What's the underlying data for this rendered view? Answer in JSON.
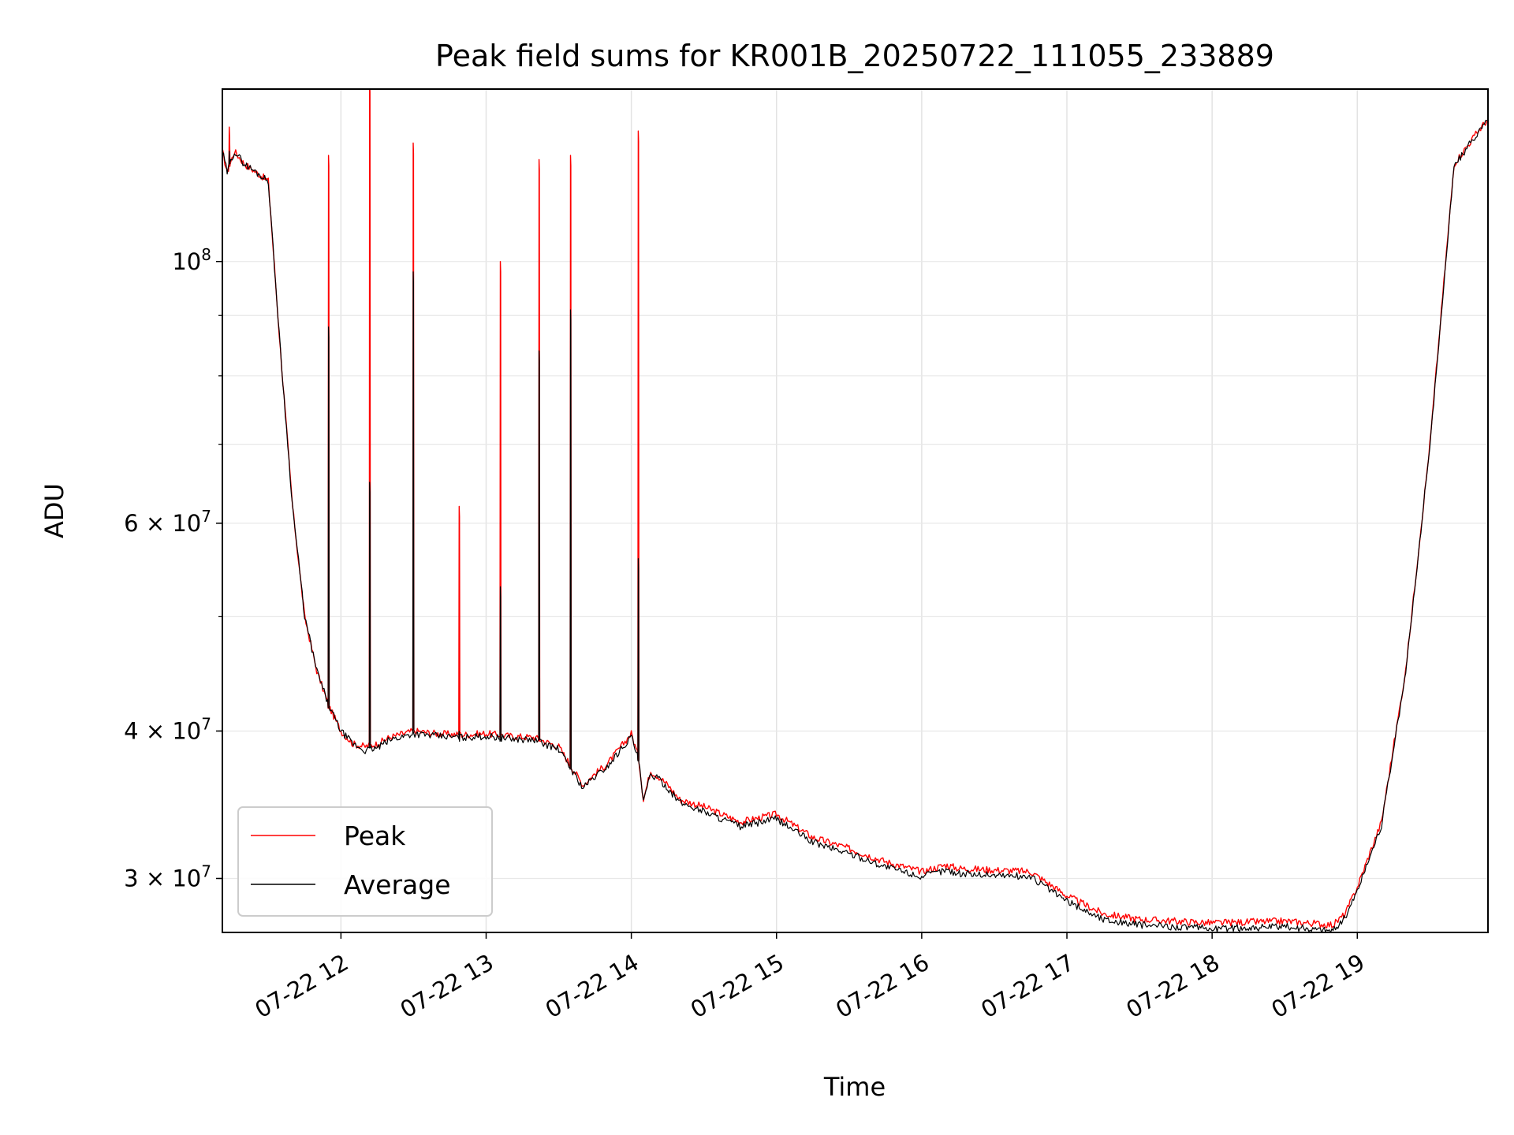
{
  "chart_data": {
    "type": "line",
    "title": "Peak field sums for KR001B_20250722_111055_233889",
    "xlabel": "Time",
    "ylabel": "ADU",
    "yscale": "log",
    "ylim": [
      27000000,
      140000000
    ],
    "xlim": [
      "07-22 11:11",
      "07-22 19:54"
    ],
    "grid": true,
    "legend_position": "lower-left",
    "x_ticks": [
      "07-22 12",
      "07-22 13",
      "07-22 14",
      "07-22 15",
      "07-22 16",
      "07-22 17",
      "07-22 18",
      "07-22 19"
    ],
    "y_ticks": [
      {
        "value": 100000000,
        "base": "10",
        "exp": "8",
        "coef": ""
      },
      {
        "value": 60000000,
        "base": "10",
        "exp": "7",
        "coef": "6 × "
      },
      {
        "value": 40000000,
        "base": "10",
        "exp": "7",
        "coef": "4 × "
      },
      {
        "value": 30000000,
        "base": "10",
        "exp": "7",
        "coef": "3 × "
      }
    ],
    "x": [
      "07-22 11:11",
      "07-22 11:13",
      "07-22 11:16",
      "07-22 11:20",
      "07-22 11:25",
      "07-22 11:30",
      "07-22 11:35",
      "07-22 11:40",
      "07-22 11:45",
      "07-22 11:50",
      "07-22 11:55",
      "07-22 12:00",
      "07-22 12:05",
      "07-22 12:10",
      "07-22 12:15",
      "07-22 12:20",
      "07-22 12:30",
      "07-22 12:40",
      "07-22 12:50",
      "07-22 13:00",
      "07-22 13:10",
      "07-22 13:20",
      "07-22 13:30",
      "07-22 13:40",
      "07-22 13:45",
      "07-22 13:50",
      "07-22 14:00",
      "07-22 14:03",
      "07-22 14:05",
      "07-22 14:08",
      "07-22 14:12",
      "07-22 14:15",
      "07-22 14:20",
      "07-22 14:30",
      "07-22 14:45",
      "07-22 15:00",
      "07-22 15:15",
      "07-22 15:30",
      "07-22 15:45",
      "07-22 16:00",
      "07-22 16:10",
      "07-22 16:15",
      "07-22 16:30",
      "07-22 16:45",
      "07-22 17:00",
      "07-22 17:15",
      "07-22 17:30",
      "07-22 17:45",
      "07-22 18:00",
      "07-22 18:30",
      "07-22 18:50",
      "07-22 18:55",
      "07-22 19:00",
      "07-22 19:10",
      "07-22 19:20",
      "07-22 19:30",
      "07-22 19:40",
      "07-22 19:50",
      "07-22 19:54"
    ],
    "series": [
      {
        "name": "Peak",
        "color": "#ff0000",
        "values": [
          124000000,
          119000000,
          124000000,
          121000000,
          119000000,
          117000000,
          84000000,
          62000000,
          50000000,
          45000000,
          42000000,
          40000000,
          39000000,
          38800000,
          39000000,
          39500000,
          40000000,
          39800000,
          39700000,
          39800000,
          39600000,
          39500000,
          38800000,
          36000000,
          36800000,
          37500000,
          39800000,
          38000000,
          35000000,
          37000000,
          36500000,
          36000000,
          35000000,
          34500000,
          33500000,
          34000000,
          32500000,
          31800000,
          31000000,
          30400000,
          30800000,
          30600000,
          30500000,
          30400000,
          29000000,
          28000000,
          27700000,
          27600000,
          27500000,
          27600000,
          27400000,
          28000000,
          29500000,
          33500000,
          45000000,
          70000000,
          121000000,
          129000000,
          132000000
        ]
      },
      {
        "name": "Average",
        "color": "#000000",
        "values": [
          124000000,
          119000000,
          124000000,
          121000000,
          119000000,
          117000000,
          84000000,
          62000000,
          50000000,
          45000000,
          42000000,
          40000000,
          39000000,
          38500000,
          38700000,
          39300000,
          39800000,
          39600000,
          39500000,
          39600000,
          39400000,
          39300000,
          38600000,
          35800000,
          36600000,
          37300000,
          39600000,
          37800000,
          34800000,
          36800000,
          36300000,
          35800000,
          34800000,
          34200000,
          33200000,
          33700000,
          32200000,
          31500000,
          30700000,
          30100000,
          30500000,
          30300000,
          30200000,
          30100000,
          28700000,
          27700000,
          27400000,
          27300000,
          27200000,
          27300000,
          27100000,
          27800000,
          29300000,
          33300000,
          44800000,
          69800000,
          120500000,
          128700000,
          131800000
        ]
      }
    ],
    "spikes": [
      {
        "x": "07-22 11:14",
        "peak": 130000000,
        "average": 124000000
      },
      {
        "x": "07-22 11:55",
        "peak": 123000000,
        "average": 88000000
      },
      {
        "x": "07-22 12:12",
        "peak": 142000000,
        "average": 65000000
      },
      {
        "x": "07-22 12:30",
        "peak": 126000000,
        "average": 98000000
      },
      {
        "x": "07-22 12:49",
        "peak": 62000000,
        "average": 40000000
      },
      {
        "x": "07-22 13:06",
        "peak": 100000000,
        "average": 53000000
      },
      {
        "x": "07-22 13:22",
        "peak": 122000000,
        "average": 84000000
      },
      {
        "x": "07-22 13:35",
        "peak": 123000000,
        "average": 91000000
      },
      {
        "x": "07-22 14:03",
        "peak": 129000000,
        "average": 56000000
      }
    ]
  },
  "legend": {
    "peak_label": "Peak",
    "average_label": "Average"
  }
}
